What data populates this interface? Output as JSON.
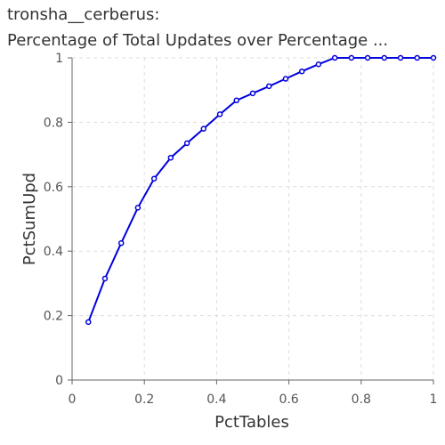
{
  "chart_data": {
    "type": "line",
    "title_line1": "tronsha__cerberus:",
    "title_line2": "Percentage of Total Updates over Percentage ...",
    "xlabel": "PctTables",
    "ylabel": "PctSumUpd",
    "xlim": [
      0,
      1
    ],
    "ylim": [
      0,
      1
    ],
    "xticks": [
      0,
      0.2,
      0.4,
      0.6,
      0.8,
      1
    ],
    "xtick_labels": [
      "0",
      "0.2",
      "0.4",
      "0.6",
      "0.8",
      "1"
    ],
    "yticks": [
      0,
      0.2,
      0.4,
      0.6,
      0.8,
      1
    ],
    "ytick_labels": [
      "0",
      "0.2",
      "0.4",
      "0.6",
      "0.8",
      "1"
    ],
    "grid": true,
    "series": [
      {
        "color": "#0000dd",
        "x": [
          0.045,
          0.091,
          0.136,
          0.182,
          0.227,
          0.273,
          0.318,
          0.364,
          0.409,
          0.455,
          0.5,
          0.545,
          0.591,
          0.636,
          0.682,
          0.727,
          0.773,
          0.818,
          0.864,
          0.909,
          0.955,
          1.0
        ],
        "y": [
          0.18,
          0.315,
          0.425,
          0.535,
          0.625,
          0.69,
          0.735,
          0.78,
          0.825,
          0.868,
          0.89,
          0.912,
          0.935,
          0.958,
          0.98,
          1.0,
          1.0,
          1.0,
          1.0,
          1.0,
          1.0,
          1.0
        ]
      }
    ]
  }
}
